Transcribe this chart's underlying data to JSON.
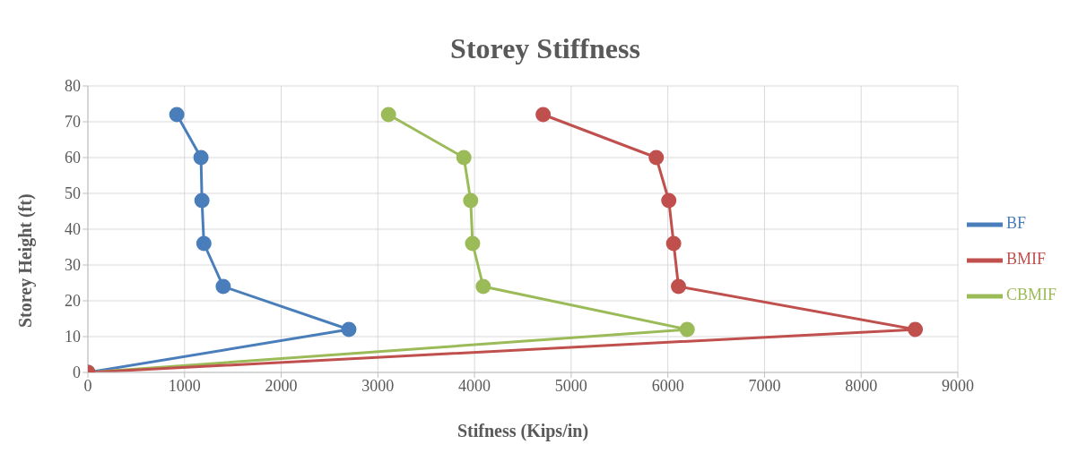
{
  "chart_data": {
    "type": "line",
    "title": "Storey Stiffness",
    "xlabel": "Stifness (Kips/in)",
    "ylabel": "Storey Height (ft)",
    "series": [
      {
        "name": "BF",
        "color": "#4a7ebb",
        "x": [
          0,
          2700,
          1400,
          1200,
          1180,
          1170,
          920
        ],
        "values": [
          0,
          12,
          24,
          36,
          48,
          60,
          72
        ]
      },
      {
        "name": "CBMIF",
        "color": "#9bbb59",
        "x": [
          0,
          6200,
          4090,
          3980,
          3960,
          3890,
          3110
        ],
        "values": [
          0,
          12,
          24,
          36,
          48,
          60,
          72
        ]
      },
      {
        "name": "BMIF",
        "color": "#c0504d",
        "x": [
          0,
          8560,
          6110,
          6060,
          6010,
          5880,
          4710
        ],
        "values": [
          0,
          12,
          24,
          36,
          48,
          60,
          72
        ]
      }
    ],
    "xlim": [
      0,
      9000
    ],
    "xticks": [
      0,
      1000,
      2000,
      3000,
      4000,
      5000,
      6000,
      7000,
      8000,
      9000
    ],
    "ylim": [
      0,
      80
    ],
    "yticks": [
      0,
      10,
      20,
      30,
      40,
      50,
      60,
      70,
      80
    ],
    "grid": true,
    "legend": "right",
    "marker": "circle",
    "line_style": "solid"
  }
}
